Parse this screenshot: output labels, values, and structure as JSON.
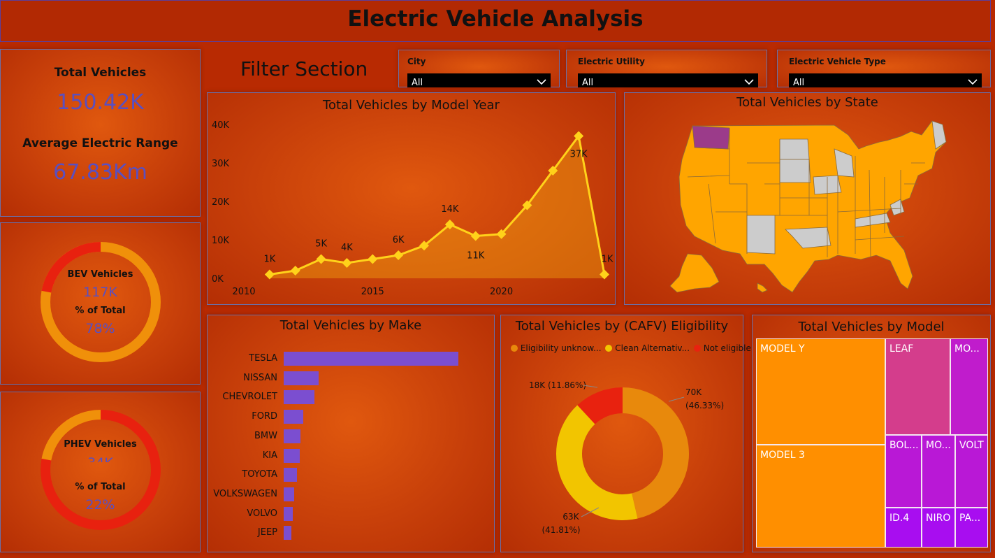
{
  "header": {
    "title": "Electric Vehicle Analysis"
  },
  "kpis": {
    "total_label": "Total Vehicles",
    "total_value": "150.42K",
    "range_label": "Average Electric Range",
    "range_value": "67.83Km"
  },
  "bev": {
    "label": "BEV Vehicles",
    "value": "117K",
    "pct_label": "% of Total",
    "pct_value": "78%",
    "share": 0.78
  },
  "phev": {
    "label": "PHEV Vehicles",
    "value": "34K",
    "pct_label": "% of Total",
    "pct_value": "22%",
    "share": 0.22
  },
  "filters": {
    "section_title": "Filter Section",
    "items": [
      {
        "label": "City",
        "value": "All"
      },
      {
        "label": "Electric Utility",
        "value": "All"
      },
      {
        "label": "Electric Vehicle Type",
        "value": "All"
      }
    ]
  },
  "colors": {
    "accent": "#5a4fc0",
    "line": "#ffd21a",
    "bar": "#7b4ed0",
    "map_fill": "#ffa500",
    "map_none": "#cccccc",
    "map_highlight": "#9b3b8a"
  },
  "chart_data": [
    {
      "type": "line",
      "title": "Total Vehicles by Model Year",
      "x": [
        2011,
        2012,
        2013,
        2014,
        2015,
        2016,
        2017,
        2018,
        2019,
        2020,
        2021,
        2022,
        2023,
        2024
      ],
      "values": [
        1000,
        2000,
        5000,
        4000,
        5000,
        6000,
        8500,
        14000,
        11000,
        11500,
        19000,
        28000,
        37000,
        1000
      ],
      "data_labels": [
        "1K",
        "",
        "5K",
        "4K",
        "",
        "6K",
        "",
        "14K",
        "11K",
        "",
        "",
        "",
        "37K",
        "1K"
      ],
      "x_ticks": [
        "2010",
        "2015",
        "2020"
      ],
      "y_ticks": [
        "0K",
        "10K",
        "20K",
        "30K",
        "40K"
      ],
      "xlim": [
        2010,
        2024
      ],
      "ylim": [
        0,
        40000
      ],
      "grid": false
    },
    {
      "type": "bar",
      "title": "Total Vehicles by Make",
      "categories": [
        "TESLA",
        "NISSAN",
        "CHEVROLET",
        "FORD",
        "BMW",
        "KIA",
        "TOYOTA",
        "VOLKSWAGEN",
        "VOLVO",
        "JEEP"
      ],
      "values": [
        68000,
        13500,
        12000,
        7700,
        6500,
        6200,
        5200,
        4100,
        3500,
        3100
      ],
      "xlim": [
        0,
        70000
      ]
    },
    {
      "type": "pie",
      "title": "Total Vehicles by (CAFV) Eligibility",
      "legend": [
        "Eligibility unknow...",
        "Clean Alternativ...",
        "Not eligible ..."
      ],
      "legend_position": "top-left",
      "slices": [
        {
          "name": "Eligibility unknow...",
          "value": 70,
          "label": "70K",
          "pct": "(46.33%)",
          "color": "#e8890c"
        },
        {
          "name": "Clean Alternativ...",
          "value": 63,
          "label": "63K",
          "pct": "(41.81%)",
          "color": "#f2c500"
        },
        {
          "name": "Not eligible ...",
          "value": 18,
          "label": "18K (11.86%)",
          "color": "#e8220f"
        }
      ]
    },
    {
      "type": "table",
      "title": "Total Vehicles by Model",
      "cells": [
        "MODEL Y",
        "MODEL 3",
        "LEAF",
        "MO...",
        "BOL...",
        "MO...",
        "VOLT",
        "ID.4",
        "NIRO",
        "PA..."
      ]
    }
  ],
  "map": {
    "title": "Total Vehicles by State"
  }
}
